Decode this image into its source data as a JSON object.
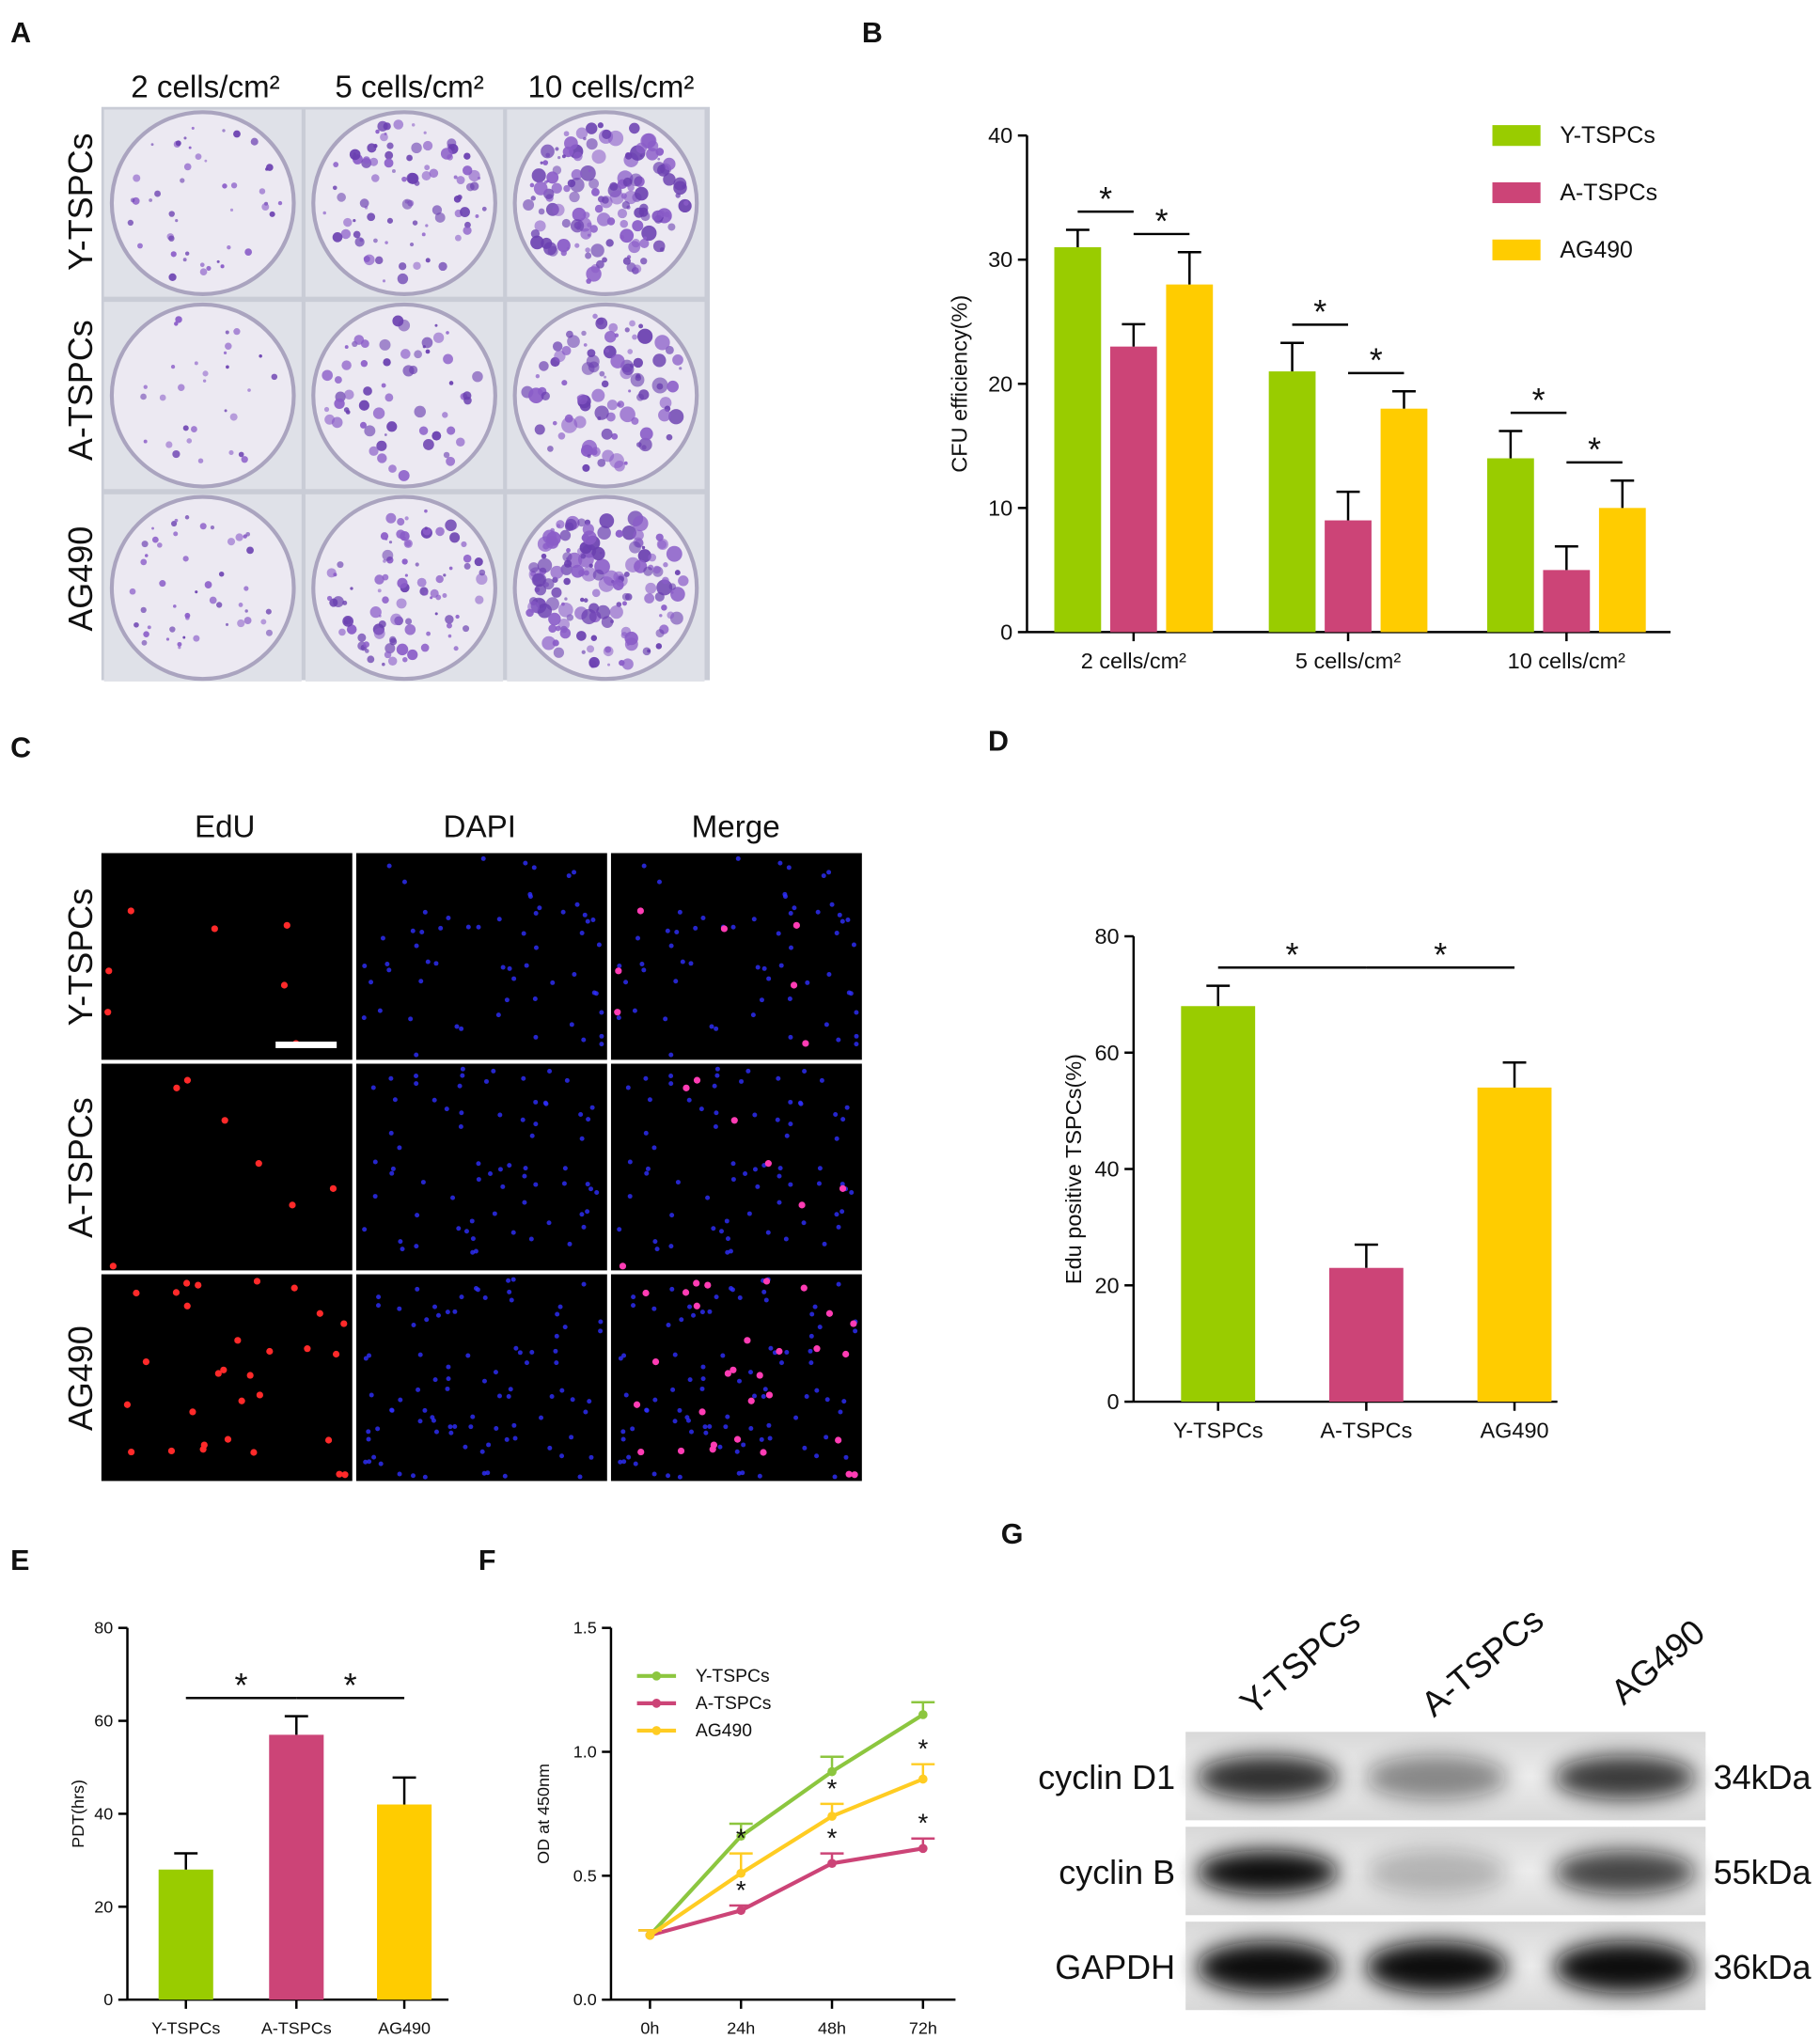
{
  "panel_a": {
    "panel_label": "A",
    "columns": [
      "2 cells/cm²",
      "5 cells/cm²",
      "10 cells/cm²"
    ],
    "rows": [
      "Y-TSPCs",
      "A-TSPCs",
      "AG490"
    ]
  },
  "panel_c": {
    "panel_label": "C",
    "columns": [
      "EdU",
      "DAPI",
      "Merge"
    ],
    "rows": [
      "Y-TSPCs",
      "A-TSPCs",
      "AG490"
    ]
  },
  "panel_g": {
    "panel_label": "G",
    "columns": [
      "Y-TSPCs",
      "A-TSPCs",
      "AG490"
    ],
    "rows": [
      {
        "name": "cyclin D1",
        "size": "34kDa"
      },
      {
        "name": "cyclin B",
        "size": "55kDa"
      },
      {
        "name": "GAPDH",
        "size": "36kDa"
      }
    ]
  },
  "chart_data": [
    {
      "panel_label": "B",
      "type": "bar",
      "ylabel": "CFU efficiency(%)",
      "categories": [
        "2 cells/cm²",
        "5 cells/cm²",
        "10 cells/cm²"
      ],
      "series": [
        {
          "name": "Y-TSPCs",
          "color": "#99cc00",
          "values": [
            31,
            21,
            14
          ],
          "errors": [
            1.4,
            2.3,
            2.2
          ]
        },
        {
          "name": "A-TSPCs",
          "color": "#cc4477",
          "values": [
            23,
            9,
            5
          ],
          "errors": [
            1.8,
            2.3,
            1.9
          ]
        },
        {
          "name": "AG490",
          "color": "#ffcc00",
          "values": [
            28,
            18,
            10
          ],
          "errors": [
            2.6,
            1.4,
            2.2
          ]
        }
      ],
      "ylim": [
        0,
        40
      ],
      "yticks": [
        0,
        10,
        20,
        30,
        40
      ],
      "legend": "upper right",
      "significance": {
        "label": "*",
        "pairs": [
          [
            0,
            1
          ],
          [
            1,
            2
          ]
        ]
      }
    },
    {
      "panel_label": "D",
      "type": "bar",
      "ylabel": "Edu positive TSPCs(%)",
      "categories": [
        "Y-TSPCs",
        "A-TSPCs",
        "AG490"
      ],
      "values": [
        68,
        23,
        54
      ],
      "errors": [
        3.5,
        4,
        4.3
      ],
      "colors": [
        "#99cc00",
        "#cc4477",
        "#ffcc00"
      ],
      "ylim": [
        0,
        80
      ],
      "yticks": [
        0,
        20,
        40,
        60,
        80
      ],
      "significance": {
        "label": "*",
        "pairs": [
          [
            0,
            1
          ],
          [
            1,
            2
          ]
        ]
      }
    },
    {
      "panel_label": "E",
      "type": "bar",
      "ylabel": "PDT(hrs)",
      "categories": [
        "Y-TSPCs",
        "A-TSPCs",
        "AG490"
      ],
      "values": [
        28,
        57,
        42
      ],
      "errors": [
        3.5,
        4,
        5.8
      ],
      "colors": [
        "#99cc00",
        "#cc4477",
        "#ffcc00"
      ],
      "ylim": [
        0,
        80
      ],
      "yticks": [
        0,
        20,
        40,
        60,
        80
      ],
      "significance": {
        "label": "*",
        "pairs": [
          [
            0,
            1
          ],
          [
            1,
            2
          ]
        ]
      }
    },
    {
      "panel_label": "F",
      "type": "line",
      "ylabel": "OD at 450nm",
      "categories": [
        "0h",
        "24h",
        "48h",
        "72h"
      ],
      "series": [
        {
          "name": "Y-TSPCs",
          "color": "#8cc63f",
          "values": [
            0.26,
            0.66,
            0.92,
            1.15
          ],
          "errors": [
            0.02,
            0.05,
            0.06,
            0.05
          ]
        },
        {
          "name": "A-TSPCs",
          "color": "#cc4477",
          "values": [
            0.26,
            0.36,
            0.55,
            0.61
          ],
          "errors": [
            0.02,
            0.02,
            0.04,
            0.04
          ]
        },
        {
          "name": "AG490",
          "color": "#ffcc22",
          "values": [
            0.26,
            0.51,
            0.74,
            0.89
          ],
          "errors": [
            0.02,
            0.08,
            0.05,
            0.06
          ]
        }
      ],
      "ylim": [
        0,
        1.5
      ],
      "yticks": [
        {
          "value": 0,
          "label": "0.0"
        },
        0.5,
        {
          "value": 1,
          "label": "1.0"
        },
        1.5
      ],
      "legend": "upper left",
      "significance": {
        "label": "*",
        "series": [
          1,
          2
        ],
        "points": [
          1,
          2,
          3
        ]
      }
    }
  ]
}
